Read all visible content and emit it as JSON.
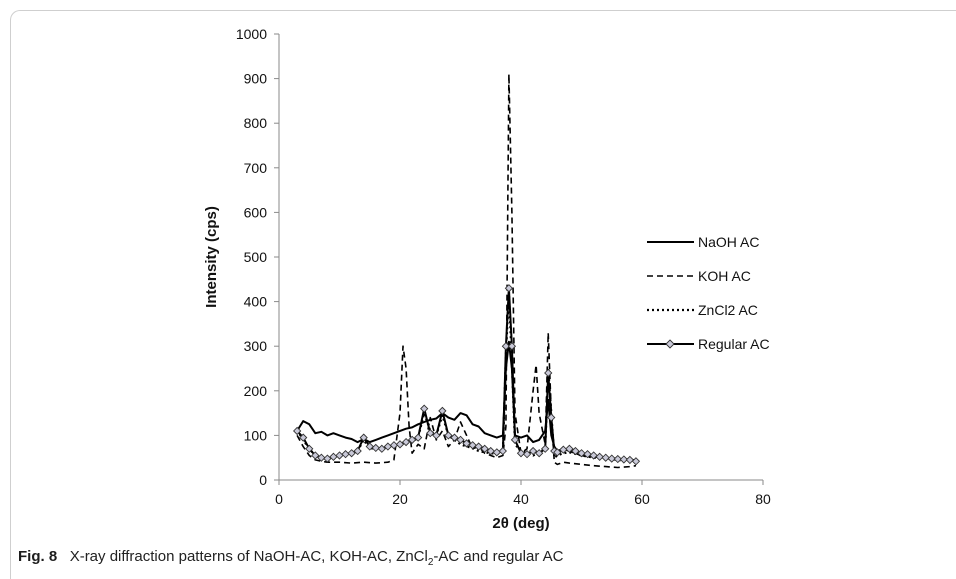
{
  "chart_data": {
    "type": "line",
    "xlabel": "2θ (deg)",
    "ylabel": "Intensity (cps)",
    "xlim": [
      0,
      80
    ],
    "ylim": [
      0,
      1000
    ],
    "xticks": [
      0,
      20,
      40,
      60,
      80
    ],
    "yticks": [
      0,
      100,
      200,
      300,
      400,
      500,
      600,
      700,
      800,
      900,
      1000
    ],
    "grid": false,
    "legend_position": "right",
    "series": [
      {
        "name": "NaOH AC",
        "style": "solid",
        "x": [
          3,
          4,
          5,
          6,
          7,
          8,
          9,
          10,
          11,
          12,
          13,
          14,
          15,
          16,
          17,
          18,
          19,
          20,
          21,
          22,
          23,
          24,
          25,
          26,
          27,
          28,
          29,
          30,
          31,
          32,
          33,
          34,
          35,
          36,
          37,
          37.5,
          38,
          38.5,
          39,
          40,
          41,
          42,
          43,
          44,
          44.5,
          45,
          45.5,
          46,
          47,
          48,
          49,
          50,
          52,
          54,
          56,
          58,
          59
        ],
        "y": [
          110,
          132,
          125,
          105,
          108,
          100,
          105,
          100,
          95,
          92,
          85,
          92,
          85,
          90,
          95,
          100,
          105,
          110,
          115,
          118,
          125,
          130,
          135,
          138,
          150,
          140,
          135,
          150,
          145,
          125,
          120,
          105,
          100,
          95,
          100,
          250,
          310,
          250,
          100,
          95,
          100,
          85,
          90,
          110,
          180,
          100,
          75,
          65,
          70,
          65,
          60,
          55,
          52,
          50,
          48,
          46,
          44
        ]
      },
      {
        "name": "KOH AC",
        "style": "dashed",
        "x": [
          3,
          4,
          5,
          6,
          7,
          8,
          10,
          12,
          14,
          16,
          18,
          19,
          20,
          20.5,
          21,
          21.5,
          22,
          23,
          24,
          25,
          26,
          27,
          28,
          29,
          30,
          31,
          32,
          33,
          34,
          35,
          36,
          37,
          37.5,
          38,
          38.5,
          39,
          40,
          41,
          42,
          42.5,
          43,
          44,
          44.5,
          45,
          45.5,
          46,
          47,
          48,
          50,
          52,
          54,
          56,
          58,
          59
        ],
        "y": [
          100,
          75,
          55,
          45,
          42,
          40,
          40,
          38,
          40,
          38,
          40,
          45,
          150,
          300,
          250,
          120,
          60,
          80,
          70,
          140,
          90,
          110,
          75,
          90,
          130,
          100,
          70,
          75,
          60,
          55,
          50,
          55,
          120,
          910,
          600,
          150,
          60,
          70,
          200,
          258,
          150,
          80,
          330,
          150,
          40,
          35,
          40,
          38,
          35,
          32,
          30,
          28,
          30,
          32
        ]
      },
      {
        "name": "ZnCl2 AC",
        "style": "dotted",
        "x": [
          3,
          4,
          5,
          6,
          7,
          8,
          10,
          12,
          13,
          14,
          15,
          16,
          18,
          20,
          22,
          23,
          24,
          25,
          26,
          27,
          28,
          29,
          30,
          31,
          32,
          33,
          34,
          35,
          36,
          37,
          37.5,
          38,
          38.5,
          39,
          40,
          41,
          42,
          43,
          44,
          44.5,
          45,
          45.5,
          46,
          47,
          48,
          50,
          52,
          54,
          56,
          58,
          59
        ],
        "y": [
          112,
          90,
          70,
          55,
          50,
          48,
          55,
          60,
          65,
          90,
          70,
          72,
          75,
          80,
          85,
          95,
          150,
          110,
          100,
          145,
          100,
          90,
          80,
          75,
          72,
          65,
          62,
          60,
          58,
          62,
          280,
          420,
          260,
          80,
          65,
          60,
          55,
          62,
          70,
          250,
          150,
          50,
          55,
          60,
          62,
          55,
          50,
          48,
          45,
          42,
          40
        ]
      },
      {
        "name": "Regular AC",
        "style": "diamond",
        "x": [
          3,
          4,
          5,
          6,
          7,
          8,
          9,
          10,
          11,
          12,
          13,
          14,
          15,
          16,
          17,
          18,
          19,
          20,
          21,
          22,
          23,
          24,
          25,
          26,
          27,
          28,
          29,
          30,
          31,
          32,
          33,
          34,
          35,
          36,
          37,
          37.5,
          38,
          38.5,
          39,
          40,
          41,
          42,
          43,
          44,
          44.5,
          45,
          45.5,
          46,
          47,
          48,
          49,
          50,
          51,
          52,
          53,
          54,
          55,
          56,
          57,
          58,
          59
        ],
        "y": [
          110,
          95,
          70,
          55,
          50,
          48,
          52,
          55,
          58,
          60,
          65,
          95,
          75,
          72,
          70,
          75,
          78,
          80,
          85,
          90,
          95,
          160,
          105,
          100,
          155,
          100,
          95,
          90,
          82,
          78,
          75,
          70,
          65,
          62,
          65,
          300,
          430,
          300,
          90,
          60,
          58,
          65,
          60,
          70,
          240,
          140,
          65,
          62,
          68,
          70,
          65,
          60,
          58,
          55,
          52,
          50,
          48,
          47,
          46,
          45,
          42
        ]
      }
    ]
  },
  "caption": {
    "label": "Fig. 8",
    "text_before": "X-ray diffraction patterns of NaOH-AC, KOH-AC, ZnCl",
    "sub": "2",
    "text_after": "-AC and regular AC"
  }
}
